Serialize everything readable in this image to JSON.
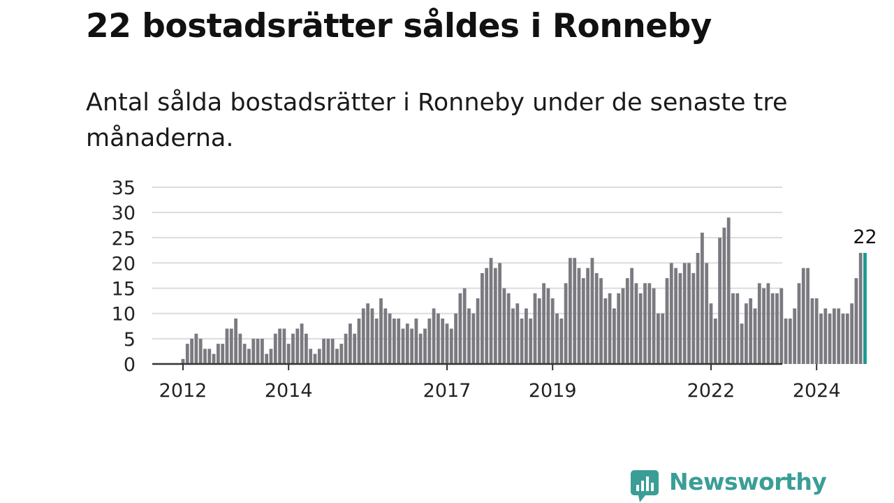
{
  "header": {
    "title": "22 bostadsrätter såldes i Ronneby",
    "subtitle": "Antal sålda bostadsrätter i Ronneby under de senaste tre månaderna."
  },
  "colors": {
    "bar": "#7b7a80",
    "highlight": "#1a9a8f",
    "grid": "#dcdcdc",
    "axis": "#333333",
    "brand": "#3a9e96"
  },
  "chart_data": {
    "type": "bar",
    "x_start": "2012-01",
    "interval": "month",
    "ylim": [
      0,
      35
    ],
    "yticks": [
      "0",
      "5",
      "10",
      "15",
      "20",
      "25",
      "30",
      "35"
    ],
    "xticks": [
      {
        "label": "2012",
        "month_index": 0
      },
      {
        "label": "2014",
        "month_index": 24
      },
      {
        "label": "2017",
        "month_index": 60
      },
      {
        "label": "2019",
        "month_index": 84
      },
      {
        "label": "2022",
        "month_index": 120
      },
      {
        "label": "2024",
        "month_index": 144
      }
    ],
    "values": [
      1,
      4,
      5,
      6,
      5,
      3,
      3,
      2,
      4,
      4,
      7,
      7,
      9,
      6,
      4,
      3,
      5,
      5,
      5,
      2,
      3,
      6,
      7,
      7,
      4,
      6,
      7,
      8,
      6,
      3,
      2,
      3,
      5,
      5,
      5,
      3,
      4,
      6,
      8,
      6,
      9,
      11,
      12,
      11,
      9,
      13,
      11,
      10,
      9,
      9,
      7,
      8,
      7,
      9,
      6,
      7,
      9,
      11,
      10,
      9,
      8,
      7,
      10,
      14,
      15,
      11,
      10,
      13,
      18,
      19,
      21,
      19,
      20,
      15,
      14,
      11,
      12,
      9,
      11,
      9,
      14,
      13,
      16,
      15,
      13,
      10,
      9,
      16,
      21,
      21,
      19,
      17,
      19,
      21,
      18,
      17,
      13,
      14,
      11,
      14,
      15,
      17,
      19,
      16,
      14,
      16,
      16,
      15,
      10,
      10,
      17,
      20,
      19,
      18,
      20,
      20,
      18,
      22,
      26,
      20,
      12,
      9,
      25,
      27,
      29,
      14,
      14,
      8,
      12,
      13,
      11,
      16,
      15,
      16,
      14,
      14,
      15,
      9,
      9,
      11,
      16,
      19,
      19,
      13,
      13,
      10,
      11,
      10,
      11,
      11,
      10,
      10,
      12,
      17,
      22,
      22
    ],
    "highlight_index": 155,
    "highlight_label": "22"
  },
  "brand": {
    "name": "Newsworthy",
    "icon": "newsworthy-bar-chart-icon"
  }
}
